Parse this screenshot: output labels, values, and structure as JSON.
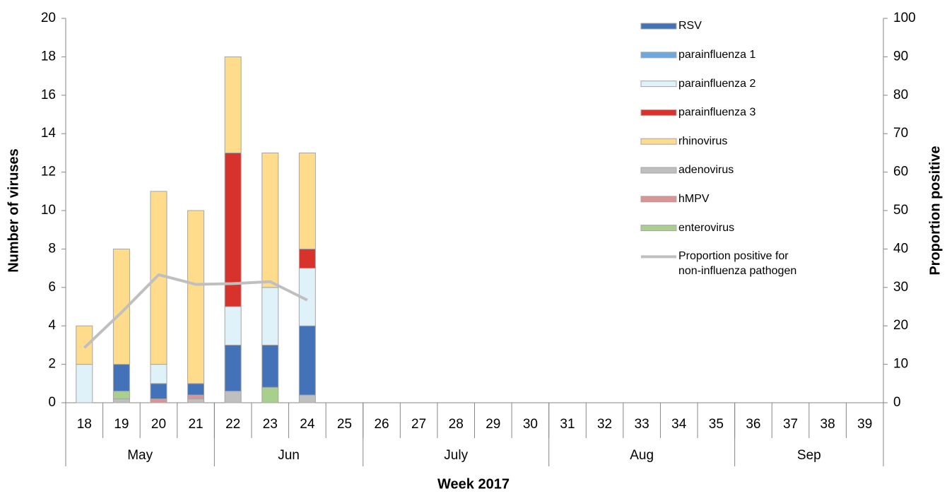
{
  "chart_data": {
    "type": "bar",
    "stacked": true,
    "x_title": "Week 2017",
    "y_title": "Number of viruses",
    "y2_title": "Proportion positive",
    "categories": [
      "18",
      "19",
      "20",
      "21",
      "22",
      "23",
      "24",
      "25",
      "26",
      "27",
      "28",
      "29",
      "30",
      "31",
      "32",
      "33",
      "34",
      "35",
      "36",
      "37",
      "38",
      "39"
    ],
    "x_groups": [
      {
        "label": "May",
        "span": 4
      },
      {
        "label": "Jun",
        "span": 4
      },
      {
        "label": "July",
        "span": 5
      },
      {
        "label": "Aug",
        "span": 5
      },
      {
        "label": "Sep",
        "span": 4
      }
    ],
    "ylim": [
      0,
      20
    ],
    "yticks": [
      0,
      2,
      4,
      6,
      8,
      10,
      12,
      14,
      16,
      18,
      20
    ],
    "y2lim": [
      0,
      100
    ],
    "y2ticks": [
      0,
      10,
      20,
      30,
      40,
      50,
      60,
      70,
      80,
      90,
      100
    ],
    "series": [
      {
        "name": "RSV",
        "color": "#4472b8",
        "values": [
          0,
          1.4,
          0.8,
          0.6,
          2.4,
          2.2,
          3.6,
          null,
          null,
          null,
          null,
          null,
          null,
          null,
          null,
          null,
          null,
          null,
          null,
          null,
          null,
          null
        ]
      },
      {
        "name": "parainfluenza 1",
        "color": "#6fa8dc",
        "values": [
          0,
          0,
          0,
          0,
          0,
          0,
          0,
          null,
          null,
          null,
          null,
          null,
          null,
          null,
          null,
          null,
          null,
          null,
          null,
          null,
          null,
          null
        ]
      },
      {
        "name": "parainfluenza 2",
        "color": "#dff1f9",
        "values": [
          2,
          0,
          1,
          0,
          2,
          3,
          3,
          null,
          null,
          null,
          null,
          null,
          null,
          null,
          null,
          null,
          null,
          null,
          null,
          null,
          null,
          null
        ]
      },
      {
        "name": "parainfluenza 3",
        "color": "#d7322b",
        "values": [
          0,
          0,
          0,
          0,
          8,
          0,
          1,
          null,
          null,
          null,
          null,
          null,
          null,
          null,
          null,
          null,
          null,
          null,
          null,
          null,
          null,
          null
        ]
      },
      {
        "name": "rhinovirus",
        "color": "#ffdc8c",
        "values": [
          2,
          6,
          9,
          9,
          5,
          7,
          5,
          null,
          null,
          null,
          null,
          null,
          null,
          null,
          null,
          null,
          null,
          null,
          null,
          null,
          null,
          null
        ]
      },
      {
        "name": "adenovirus",
        "color": "#bfbfbf",
        "values": [
          0,
          0.2,
          0,
          0.2,
          0.6,
          0,
          0.4,
          null,
          null,
          null,
          null,
          null,
          null,
          null,
          null,
          null,
          null,
          null,
          null,
          null,
          null,
          null
        ]
      },
      {
        "name": "hMPV",
        "color": "#d99594",
        "values": [
          0,
          0,
          0.2,
          0.2,
          0,
          0,
          0,
          null,
          null,
          null,
          null,
          null,
          null,
          null,
          null,
          null,
          null,
          null,
          null,
          null,
          null,
          null
        ]
      },
      {
        "name": "enterovirus",
        "color": "#a9cf8d",
        "values": [
          0,
          0.4,
          0,
          0,
          0,
          0.8,
          0,
          null,
          null,
          null,
          null,
          null,
          null,
          null,
          null,
          null,
          null,
          null,
          null,
          null,
          null,
          null
        ]
      },
      {
        "name": "Proportion positive for non-influenza pathogen",
        "type": "line",
        "axis": "y2",
        "color": "#bfbfbf",
        "values": [
          14.3,
          23.5,
          33.3,
          30.8,
          31,
          31.5,
          26.7,
          null,
          null,
          null,
          null,
          null,
          null,
          null,
          null,
          null,
          null,
          null,
          null,
          null,
          null,
          null
        ]
      }
    ]
  }
}
